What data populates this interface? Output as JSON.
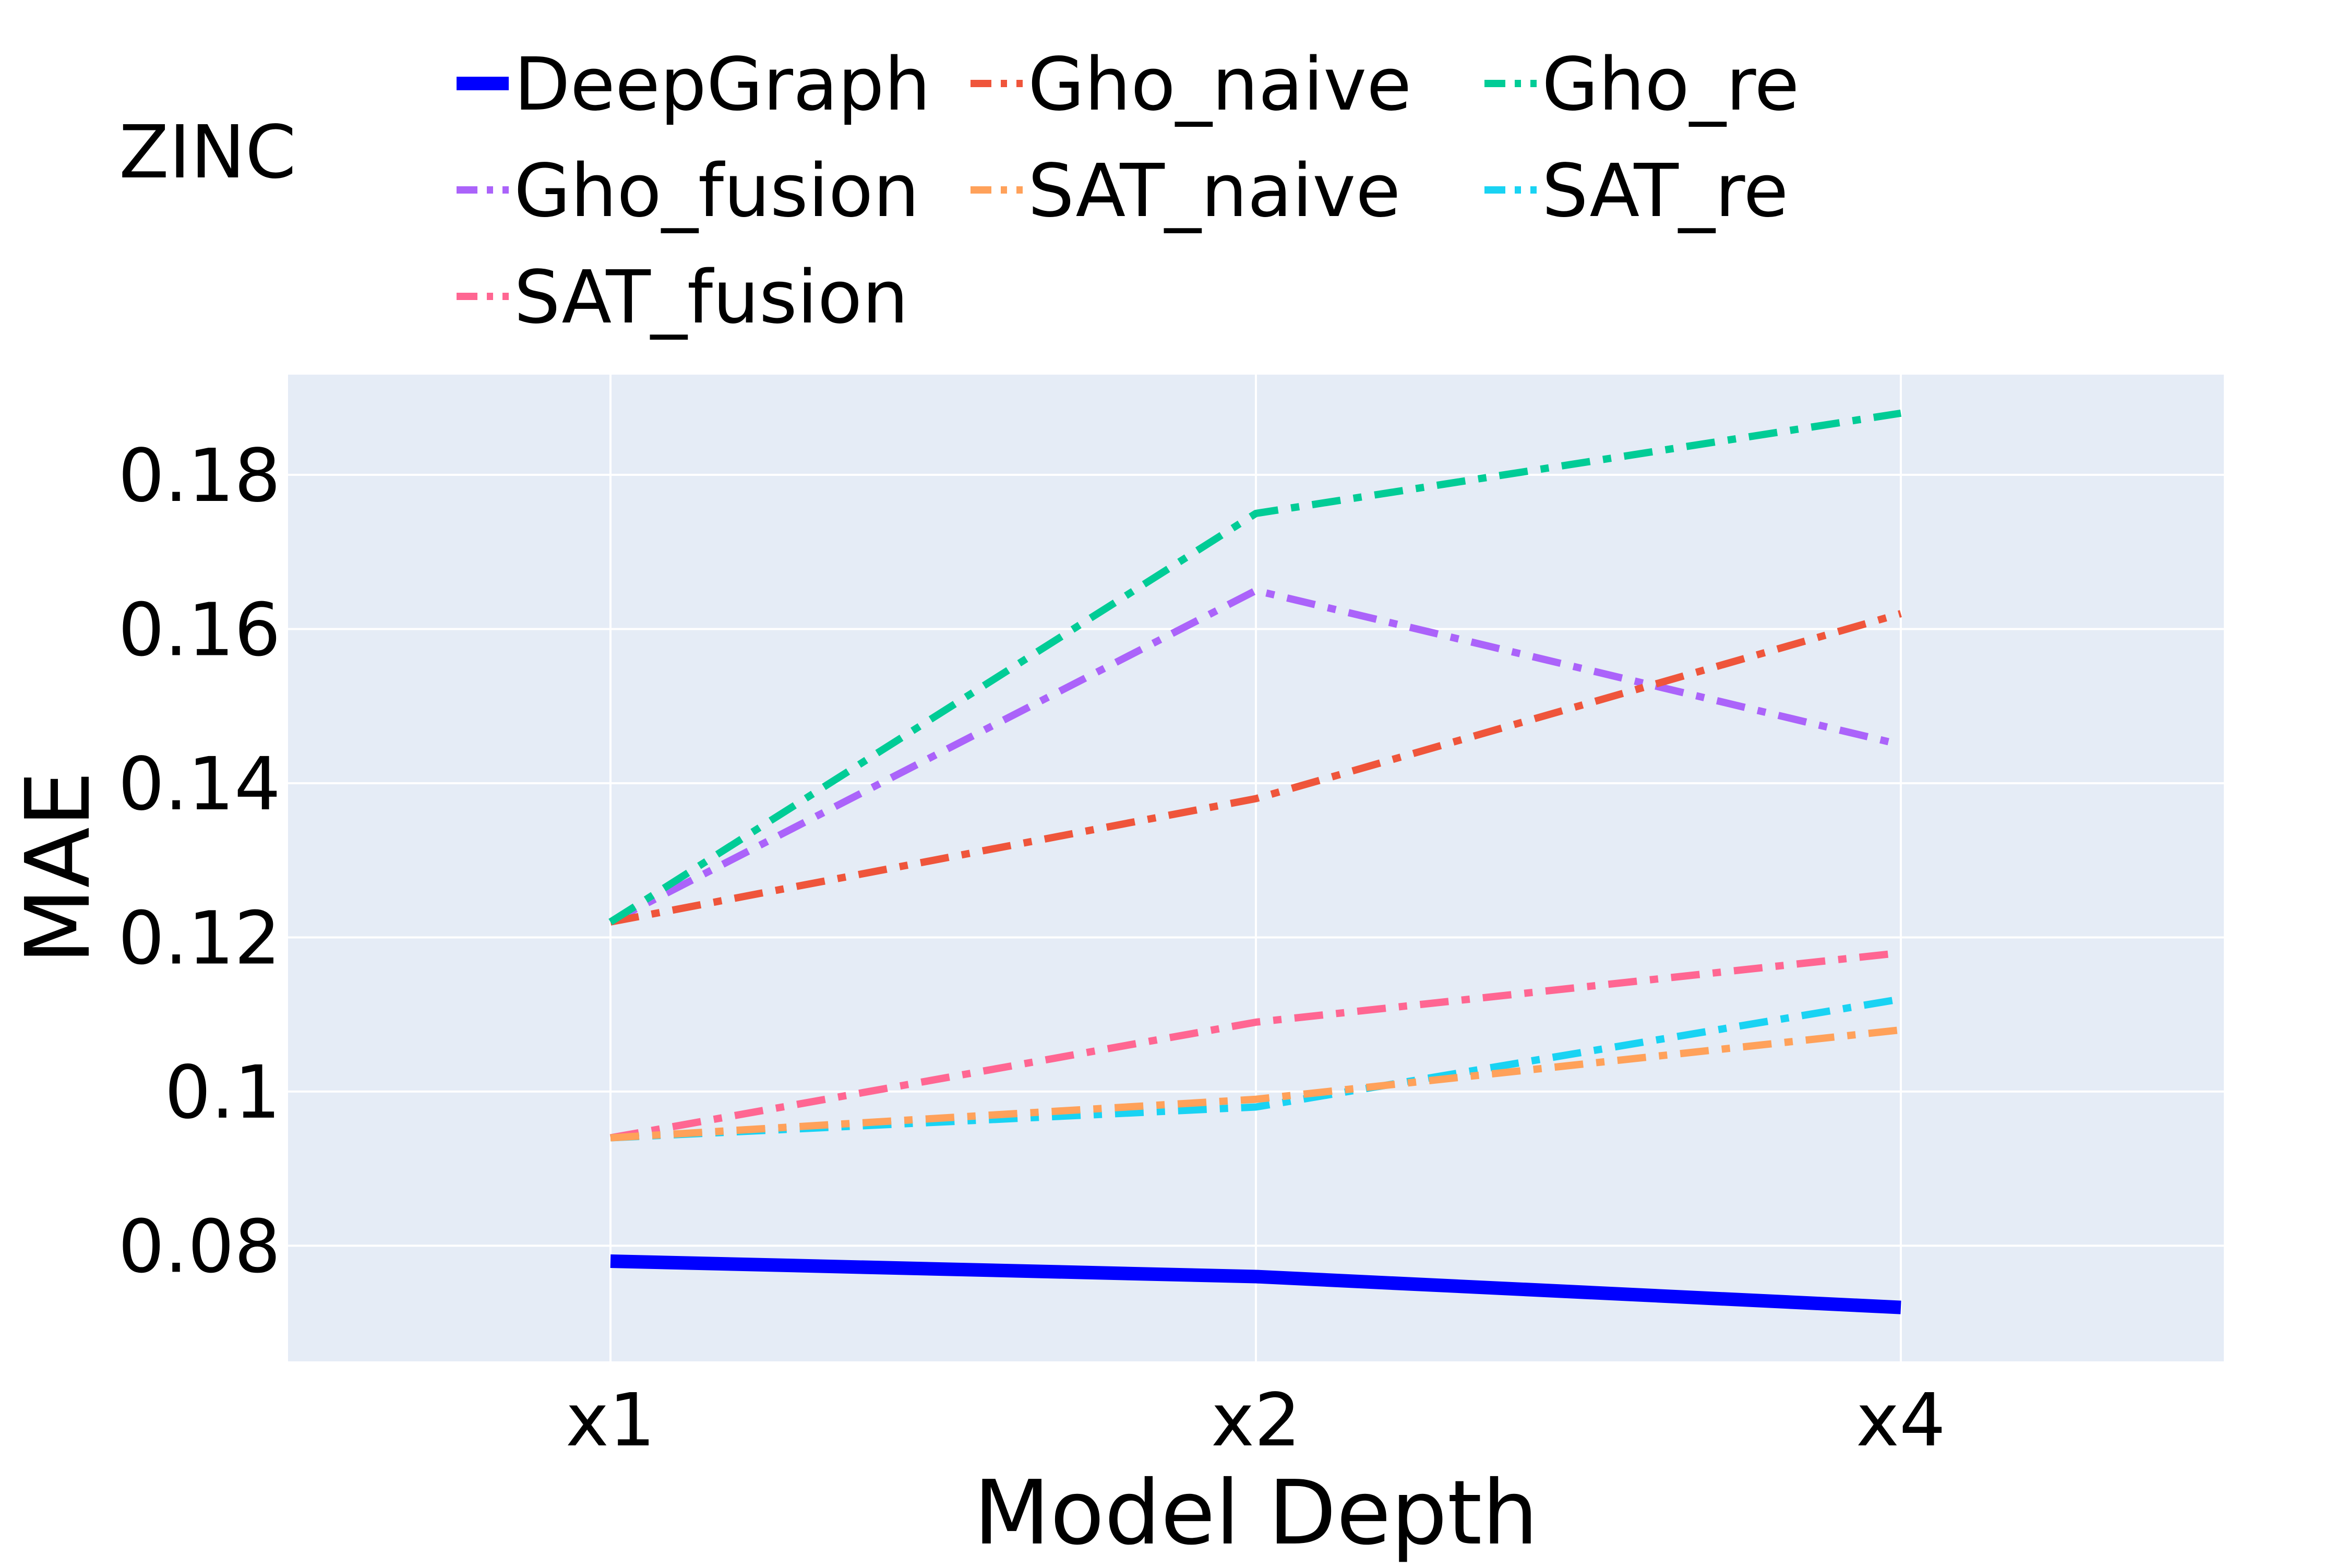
{
  "chart_data": {
    "type": "line",
    "title": "ZINC",
    "xlabel": "Model Depth",
    "ylabel": "MAE",
    "categories": [
      "x1",
      "x2",
      "x4"
    ],
    "ylim": [
      0.065,
      0.193
    ],
    "yticks": [
      0.08,
      0.1,
      0.12,
      0.14,
      0.16,
      0.18
    ],
    "ytick_labels": [
      "0.08",
      "0.1",
      "0.12",
      "0.14",
      "0.16",
      "0.18"
    ],
    "grid": true,
    "legend_position": "top",
    "plot_background": "#e5ecf6",
    "series": [
      {
        "name": "DeepGraph",
        "values": [
          0.078,
          0.076,
          0.072
        ],
        "color": "#0000ff",
        "dash": "solid"
      },
      {
        "name": "Gho_naive",
        "values": [
          0.122,
          0.138,
          0.162
        ],
        "color": "#ef553b",
        "dash": "dashdot"
      },
      {
        "name": "Gho_re",
        "values": [
          0.122,
          0.175,
          0.188
        ],
        "color": "#00cc96",
        "dash": "dashdot"
      },
      {
        "name": "Gho_fusion",
        "values": [
          0.122,
          0.165,
          0.145
        ],
        "color": "#ab63fa",
        "dash": "dashdot"
      },
      {
        "name": "SAT_naive",
        "values": [
          0.094,
          0.099,
          0.108
        ],
        "color": "#ffa15a",
        "dash": "dashdot"
      },
      {
        "name": "SAT_re",
        "values": [
          0.094,
          0.098,
          0.112
        ],
        "color": "#19d3f3",
        "dash": "dashdot"
      },
      {
        "name": "SAT_fusion",
        "values": [
          0.094,
          0.109,
          0.118
        ],
        "color": "#ff6692",
        "dash": "dashdot"
      }
    ]
  }
}
